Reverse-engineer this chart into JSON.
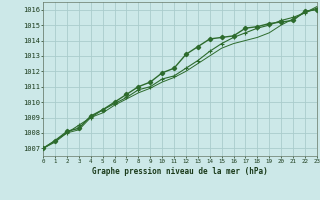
{
  "title": "Graphe pression niveau de la mer (hPa)",
  "background_color": "#cce8e8",
  "grid_color": "#aacccc",
  "line_color": "#2d6b2d",
  "xlim": [
    0,
    23
  ],
  "ylim": [
    1006.5,
    1016.5
  ],
  "yticks": [
    1007,
    1008,
    1009,
    1010,
    1011,
    1012,
    1013,
    1014,
    1015,
    1016
  ],
  "xticks": [
    0,
    1,
    2,
    3,
    4,
    5,
    6,
    7,
    8,
    9,
    10,
    11,
    12,
    13,
    14,
    15,
    16,
    17,
    18,
    19,
    20,
    21,
    22,
    23
  ],
  "series1_x": [
    0,
    1,
    2,
    3,
    4,
    5,
    6,
    7,
    8,
    9,
    10,
    11,
    12,
    13,
    14,
    15,
    16,
    17,
    18,
    19,
    20,
    21,
    22,
    23
  ],
  "series1_y": [
    1007.0,
    1007.5,
    1008.1,
    1008.3,
    1009.1,
    1009.5,
    1010.0,
    1010.5,
    1011.0,
    1011.3,
    1011.9,
    1012.2,
    1013.1,
    1013.6,
    1014.1,
    1014.2,
    1014.3,
    1014.8,
    1014.9,
    1015.1,
    1015.2,
    1015.3,
    1015.9,
    1016.0
  ],
  "series2_x": [
    0,
    1,
    2,
    3,
    4,
    5,
    6,
    7,
    8,
    9,
    10,
    11,
    12,
    13,
    14,
    15,
    16,
    17,
    18,
    19,
    20,
    21,
    22,
    23
  ],
  "series2_y": [
    1007.0,
    1007.5,
    1008.0,
    1008.5,
    1009.0,
    1009.5,
    1009.9,
    1010.3,
    1010.8,
    1011.0,
    1011.5,
    1011.7,
    1012.2,
    1012.7,
    1013.3,
    1013.8,
    1014.2,
    1014.5,
    1014.8,
    1015.0,
    1015.3,
    1015.5,
    1015.8,
    1016.1
  ],
  "series3_x": [
    0,
    1,
    2,
    3,
    4,
    5,
    6,
    7,
    8,
    9,
    10,
    11,
    12,
    13,
    14,
    15,
    16,
    17,
    18,
    19,
    20,
    21,
    22,
    23
  ],
  "series3_y": [
    1007.0,
    1007.4,
    1008.0,
    1008.2,
    1009.0,
    1009.3,
    1009.8,
    1010.2,
    1010.6,
    1010.9,
    1011.3,
    1011.6,
    1012.0,
    1012.5,
    1013.0,
    1013.5,
    1013.8,
    1014.0,
    1014.2,
    1014.5,
    1015.0,
    1015.4,
    1015.8,
    1016.2
  ]
}
